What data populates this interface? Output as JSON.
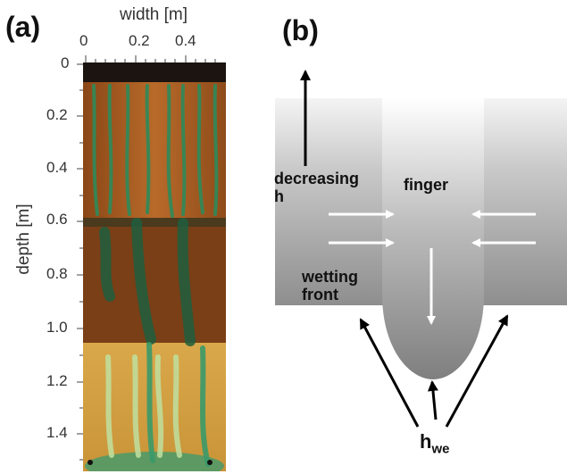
{
  "panel_a": {
    "label": "(a)",
    "xlabel": "width [m]",
    "ylabel": "depth [m]",
    "x_ticks": [
      "0",
      "0.2",
      "0.4"
    ],
    "y_ticks": [
      "0",
      "0.2",
      "0.4",
      "0.6",
      "0.8",
      "1.0",
      "1.2",
      "1.4"
    ]
  },
  "panel_b": {
    "label": "(b)",
    "text_decreasing": "decreasing",
    "text_h": "h",
    "text_finger": "finger",
    "text_wetting": "wetting",
    "text_front": "front",
    "text_hwe_main": "h",
    "text_hwe_sub": "we"
  },
  "colors": {
    "photo_brown": "#a65a1e",
    "photo_yellow": "#d8a54a",
    "photo_green": "#2f8a5a",
    "arrow_white": "#ffffff",
    "arrow_black": "#000000"
  }
}
